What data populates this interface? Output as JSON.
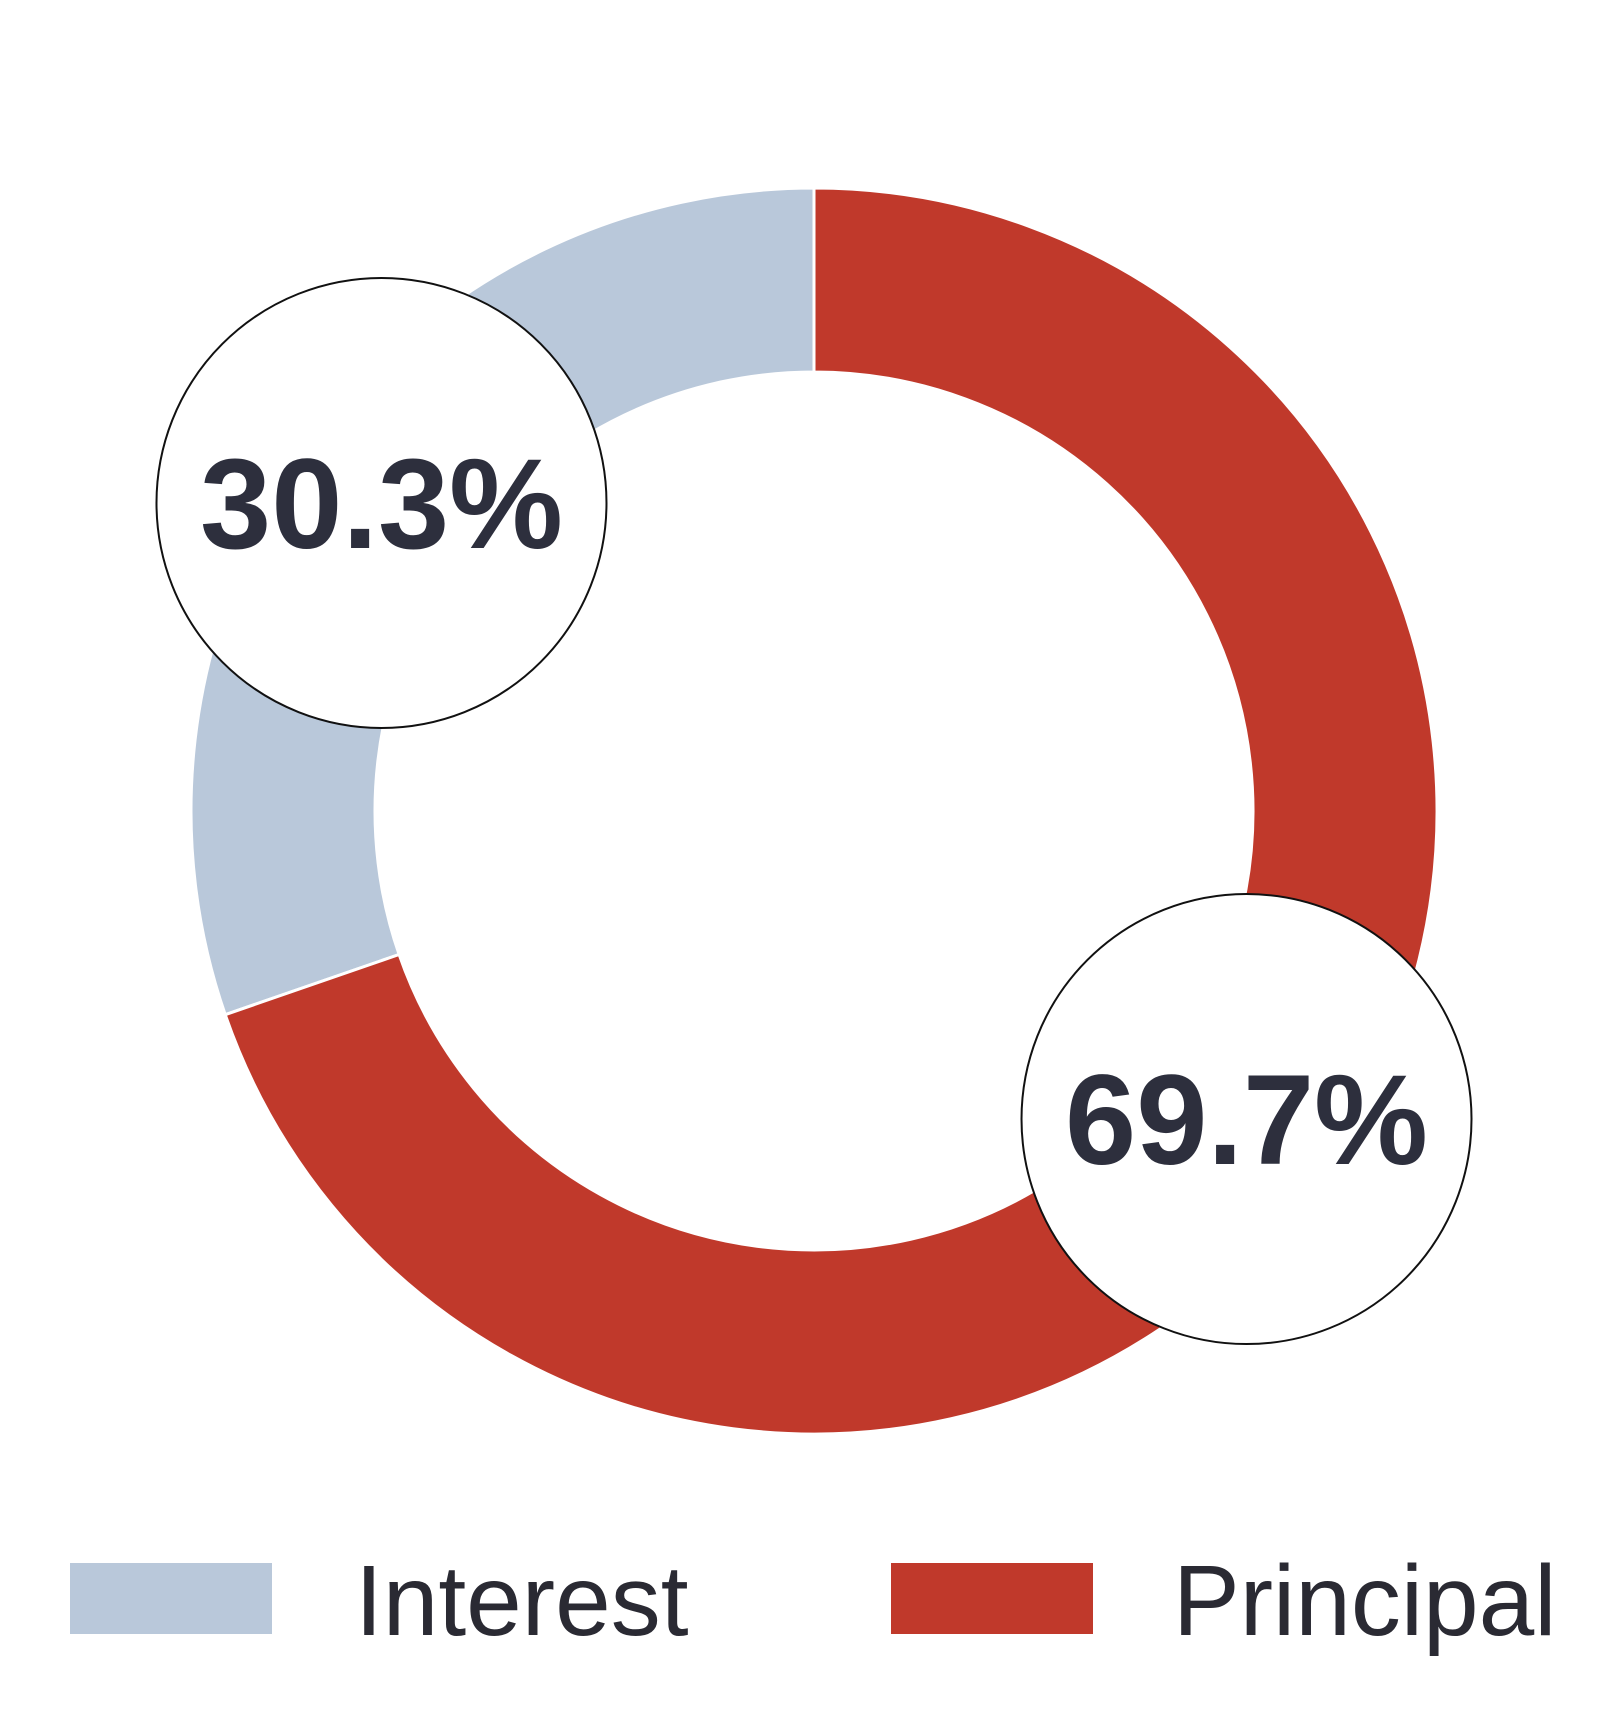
{
  "chart_data": {
    "type": "pie",
    "variant": "donut",
    "categories": [
      "Interest",
      "Principal"
    ],
    "values": [
      30.3,
      69.7
    ],
    "data_labels": [
      "30.3%",
      "69.7%"
    ],
    "colors": [
      "#b9c8da",
      "#c0392b"
    ],
    "legend": {
      "placement": "bottom",
      "entries": [
        "Interest",
        "Principal"
      ]
    },
    "title": ""
  }
}
